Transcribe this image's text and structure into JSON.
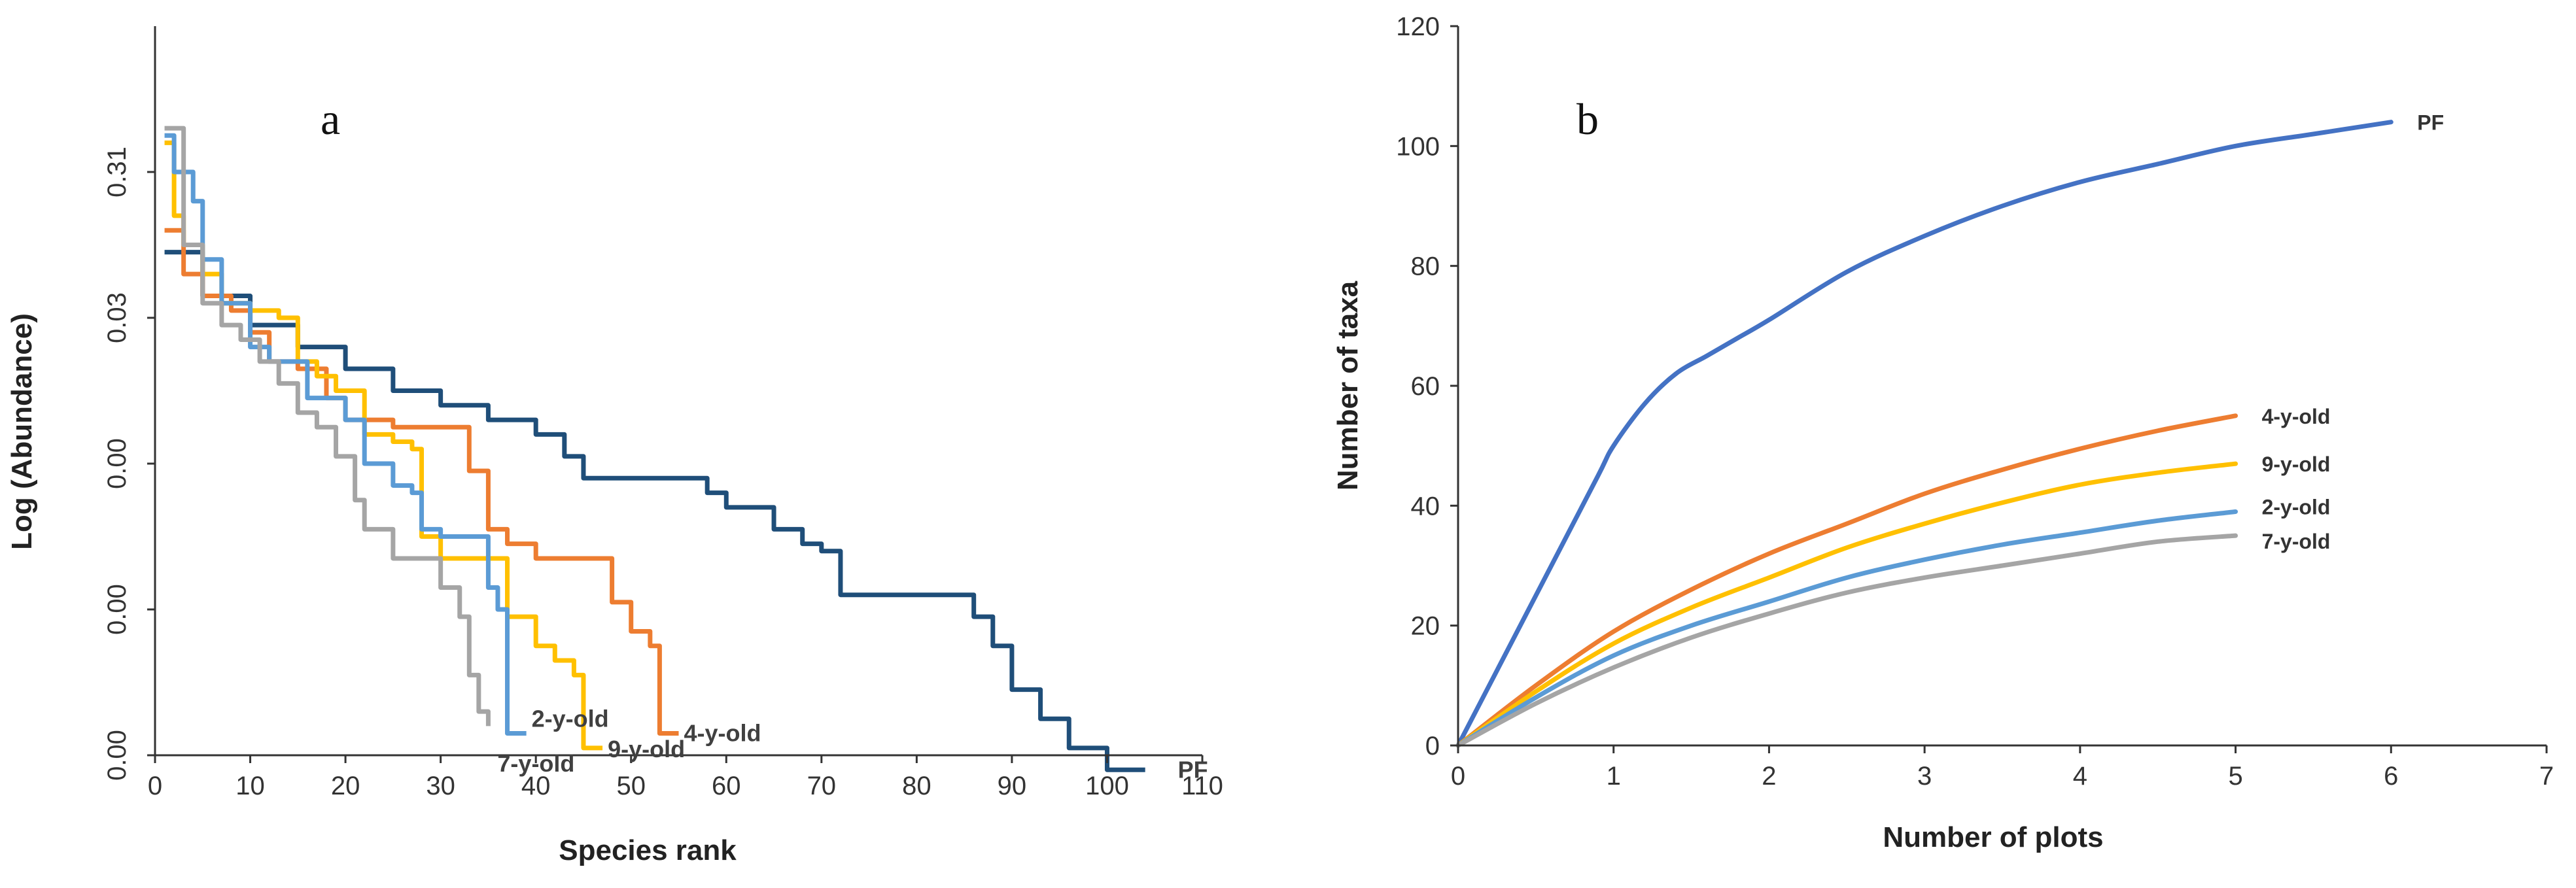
{
  "chart_data": [
    {
      "panel": "a",
      "type": "line",
      "xlabel": "Species rank",
      "ylabel": "Log (Abundance)",
      "xlim": [
        0,
        110
      ],
      "xticks": [
        0,
        10,
        20,
        30,
        40,
        50,
        60,
        70,
        80,
        90,
        100,
        110
      ],
      "ylim": [
        0,
        5
      ],
      "ytick_positions": [
        0,
        1,
        2,
        3,
        4
      ],
      "ytick_labels": [
        "0.00",
        "0.00",
        "0.00",
        "0.03",
        "0.31"
      ],
      "series": [
        {
          "name": "PF",
          "color": "#1f4e79",
          "x": [
            1,
            5,
            10,
            15,
            20,
            25,
            30,
            35,
            38,
            40,
            43,
            45,
            50,
            55,
            58,
            60,
            65,
            68,
            70,
            72,
            80,
            84,
            86,
            88,
            90,
            93,
            96,
            99,
            100,
            104
          ],
          "y": [
            3.45,
            3.15,
            2.95,
            2.8,
            2.65,
            2.5,
            2.4,
            2.3,
            2.3,
            2.2,
            2.05,
            1.9,
            1.9,
            1.9,
            1.8,
            1.7,
            1.55,
            1.45,
            1.4,
            1.1,
            1.1,
            1.1,
            0.95,
            0.75,
            0.45,
            0.25,
            0.05,
            0.05,
            -0.1,
            -0.1
          ]
        },
        {
          "name": "4-y-old",
          "color": "#ed7d31",
          "x": [
            1,
            3,
            5,
            8,
            10,
            12,
            15,
            18,
            20,
            25,
            30,
            33,
            35,
            37,
            40,
            43,
            47,
            48,
            50,
            52,
            53,
            55
          ],
          "y": [
            3.6,
            3.3,
            3.15,
            3.05,
            2.9,
            2.7,
            2.65,
            2.45,
            2.3,
            2.25,
            2.25,
            1.95,
            1.55,
            1.45,
            1.35,
            1.35,
            1.35,
            1.05,
            0.85,
            0.75,
            0.15,
            0.15
          ]
        },
        {
          "name": "9-y-old",
          "color": "#ffc000",
          "x": [
            1,
            2,
            3,
            5,
            7,
            10,
            13,
            15,
            17,
            19,
            22,
            25,
            27,
            28,
            30,
            33,
            35,
            37,
            40,
            42,
            44,
            45,
            47
          ],
          "y": [
            4.2,
            3.7,
            3.5,
            3.3,
            3.1,
            3.05,
            3.0,
            2.7,
            2.6,
            2.5,
            2.2,
            2.15,
            2.1,
            1.5,
            1.35,
            1.35,
            1.35,
            0.95,
            0.75,
            0.65,
            0.55,
            0.05,
            0.05
          ]
        },
        {
          "name": "2-y-old",
          "color": "#5b9bd5",
          "x": [
            1,
            2,
            4,
            5,
            7,
            10,
            12,
            14,
            16,
            18,
            20,
            22,
            25,
            27,
            28,
            30,
            33,
            35,
            36,
            37,
            39
          ],
          "y": [
            4.25,
            4.0,
            3.8,
            3.4,
            3.1,
            2.8,
            2.7,
            2.7,
            2.45,
            2.45,
            2.3,
            2.0,
            1.85,
            1.8,
            1.55,
            1.5,
            1.5,
            1.15,
            1.0,
            0.15,
            0.15
          ]
        },
        {
          "name": "7-y-old",
          "color": "#a5a5a5",
          "x": [
            1,
            3,
            5,
            7,
            9,
            11,
            13,
            15,
            17,
            19,
            21,
            22,
            25,
            28,
            30,
            32,
            33,
            34,
            35
          ],
          "y": [
            4.3,
            3.5,
            3.1,
            2.95,
            2.85,
            2.7,
            2.55,
            2.35,
            2.25,
            2.05,
            1.75,
            1.55,
            1.35,
            1.35,
            1.15,
            0.95,
            0.55,
            0.3,
            0.2
          ]
        }
      ]
    },
    {
      "panel": "b",
      "type": "line",
      "xlabel": "Number of plots",
      "ylabel": "Number of taxa",
      "xlim": [
        0,
        7
      ],
      "ylim": [
        0,
        120
      ],
      "xticks": [
        0,
        1,
        2,
        3,
        4,
        5,
        6,
        7
      ],
      "yticks": [
        0,
        20,
        40,
        60,
        80,
        100,
        120
      ],
      "series": [
        {
          "name": "PF",
          "color": "#4472c4",
          "x": [
            0,
            0.3,
            0.6,
            0.9,
            1.0,
            1.2,
            1.4,
            1.6,
            1.8,
            2.0,
            2.5,
            3.0,
            3.5,
            4.0,
            4.5,
            5.0,
            5.5,
            6.0
          ],
          "y": [
            0,
            15,
            30,
            45,
            50,
            57,
            62,
            65,
            68,
            71,
            79,
            85,
            90,
            94,
            97,
            100,
            102,
            104
          ]
        },
        {
          "name": "4-y-old",
          "color": "#ed7d31",
          "x": [
            0,
            0.5,
            1,
            1.5,
            2,
            2.5,
            3,
            3.5,
            4,
            4.5,
            5
          ],
          "y": [
            0,
            10,
            19,
            26,
            32,
            37,
            42,
            46,
            49.5,
            52.5,
            55
          ]
        },
        {
          "name": "9-y-old",
          "color": "#ffc000",
          "x": [
            0,
            0.5,
            1,
            1.5,
            2,
            2.5,
            3,
            3.5,
            4,
            4.5,
            5
          ],
          "y": [
            0,
            9,
            17,
            23,
            28,
            33,
            37,
            40.5,
            43.5,
            45.5,
            47
          ]
        },
        {
          "name": "2-y-old",
          "color": "#5b9bd5",
          "x": [
            0,
            0.5,
            1,
            1.5,
            2,
            2.5,
            3,
            3.5,
            4,
            4.5,
            5
          ],
          "y": [
            0,
            8,
            15,
            20,
            24,
            28,
            31,
            33.5,
            35.5,
            37.5,
            39
          ]
        },
        {
          "name": "7-y-old",
          "color": "#a5a5a5",
          "x": [
            0,
            0.5,
            1,
            1.5,
            2,
            2.5,
            3,
            3.5,
            4,
            4.5,
            5
          ],
          "y": [
            0,
            7,
            13,
            18,
            22,
            25.5,
            28,
            30,
            32,
            34,
            35
          ]
        }
      ]
    }
  ]
}
